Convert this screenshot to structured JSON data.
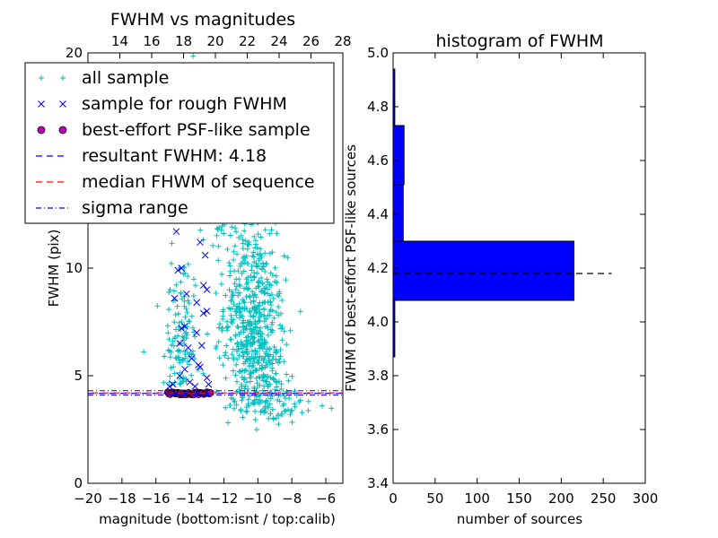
{
  "chart_data": [
    {
      "type": "scatter",
      "title": "FWHM vs magnitudes",
      "xlabel": "magnitude (bottom:isnt / top:calib)",
      "ylabel": "FWHM (pix)",
      "xlim": [
        -20,
        -5
      ],
      "ylim": [
        0,
        20
      ],
      "top_xlim": [
        12,
        28
      ],
      "x_ticks": [
        "−20",
        "−18",
        "−16",
        "−14",
        "−12",
        "−10",
        "−8",
        "−6"
      ],
      "y_ticks": [
        "0",
        "5",
        "10"
      ],
      "top_x_ticks": [
        "14",
        "16",
        "18",
        "20",
        "22",
        "24",
        "26",
        "28"
      ],
      "top_right_label": "20",
      "legend_position": "upper-left",
      "legend": [
        {
          "label": "all sample",
          "marker": "+",
          "color": "#00bfbf"
        },
        {
          "label": "sample for rough FWHM",
          "marker": "x",
          "color": "#0000ff"
        },
        {
          "label": "best-effort PSF-like sample",
          "marker": "o",
          "color": "#bf00bf"
        },
        {
          "label": "resultant FWHM: 4.18",
          "marker": "--",
          "color": "#0000ff"
        },
        {
          "label": "median FHWM of sequence",
          "marker": "--",
          "color": "#ff0000"
        },
        {
          "label": "sigma range",
          "marker": "-.",
          "color": "#0000ff"
        }
      ],
      "resultant_fwhm": 4.18,
      "median_fwhm": 4.2,
      "sigma_range": [
        4.1,
        4.3
      ],
      "series": [
        {
          "name": "sample for rough FWHM",
          "points": [
            [
              -14.8,
              11.7
            ],
            [
              -13.4,
              11.2
            ],
            [
              -13.1,
              10.6
            ],
            [
              -14.7,
              9.9
            ],
            [
              -14.5,
              10.0
            ],
            [
              -13.2,
              9.2
            ],
            [
              -13.0,
              9.0
            ],
            [
              -14.9,
              8.6
            ],
            [
              -14.2,
              8.8
            ],
            [
              -13.6,
              8.4
            ],
            [
              -13.0,
              8.0
            ],
            [
              -13.2,
              7.9
            ],
            [
              -14.3,
              7.3
            ],
            [
              -14.5,
              7.2
            ],
            [
              -13.6,
              7.0
            ],
            [
              -14.6,
              6.5
            ],
            [
              -14.1,
              6.3
            ],
            [
              -13.3,
              6.4
            ],
            [
              -13.9,
              5.8
            ],
            [
              -13.5,
              5.5
            ],
            [
              -14.3,
              5.3
            ],
            [
              -14.6,
              5.0
            ],
            [
              -13.4,
              5.4
            ],
            [
              -13.0,
              4.9
            ],
            [
              -14.0,
              4.7
            ],
            [
              -15.0,
              4.6
            ],
            [
              -15.2,
              4.5
            ],
            [
              -12.9,
              4.6
            ],
            [
              -13.7,
              4.5
            ]
          ]
        },
        {
          "name": "best-effort PSF-like sample",
          "x_range": [
            -15.3,
            -12.8
          ],
          "y_center": 4.18,
          "count": 40
        }
      ]
    },
    {
      "type": "bar",
      "orientation": "horizontal",
      "title": "histogram of FWHM",
      "xlabel": "number of sources",
      "ylabel": "FWHM of best-effort PSF-like sources",
      "xlim": [
        0,
        300
      ],
      "ylim": [
        3.4,
        5.0
      ],
      "x_ticks": [
        "0",
        "50",
        "100",
        "150",
        "200",
        "250",
        "300"
      ],
      "y_ticks": [
        "3.4",
        "3.6",
        "3.8",
        "4.0",
        "4.2",
        "4.4",
        "4.6",
        "4.8",
        "5.0"
      ],
      "bars": [
        {
          "from": 3.87,
          "to": 4.08,
          "value": 2
        },
        {
          "from": 4.08,
          "to": 4.3,
          "value": 215
        },
        {
          "from": 4.3,
          "to": 4.51,
          "value": 12
        },
        {
          "from": 4.51,
          "to": 4.73,
          "value": 13
        },
        {
          "from": 4.73,
          "to": 4.94,
          "value": 2
        }
      ],
      "reference_line": {
        "y": 4.18,
        "x_range": [
          0,
          260
        ]
      },
      "bar_color": "#0000ff"
    }
  ]
}
